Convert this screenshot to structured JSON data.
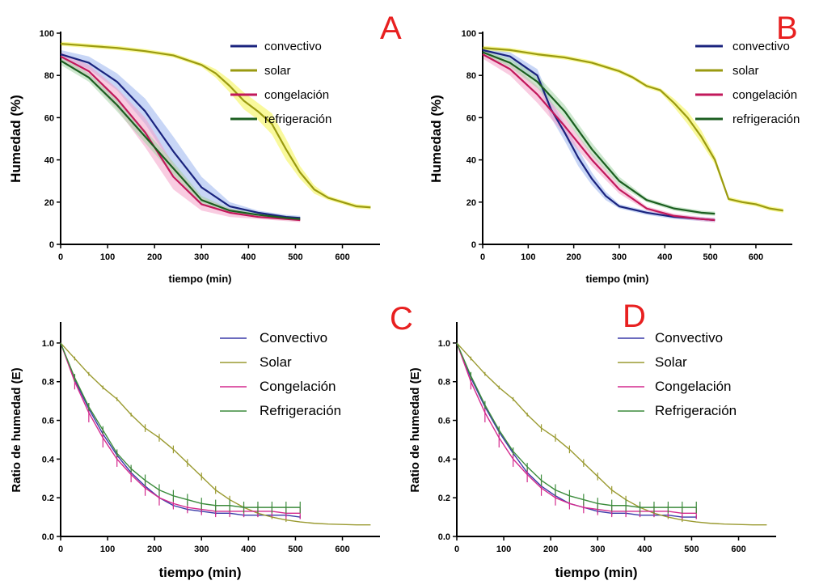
{
  "chart_data": [
    {
      "panel": "A",
      "type": "line",
      "xlabel": "tiempo (min)",
      "ylabel": "Humedad (%)",
      "xlim": [
        0,
        680
      ],
      "ylim": [
        0,
        100
      ],
      "xticks": [
        0,
        100,
        200,
        300,
        400,
        500,
        600
      ],
      "yticks": [
        0,
        20,
        40,
        60,
        80,
        100
      ],
      "legend_position": "top-right",
      "grid": false,
      "series": [
        {
          "name": "convectivo",
          "color": "#1a237e",
          "band_color": "#9bb4ee",
          "x": [
            0,
            60,
            120,
            180,
            240,
            300,
            360,
            420,
            480,
            510
          ],
          "y": [
            90,
            86,
            77,
            63,
            44,
            27,
            18,
            15,
            13,
            12.5
          ],
          "band": [
            2,
            3,
            4,
            6,
            7,
            5,
            2,
            1,
            1,
            1
          ]
        },
        {
          "name": "solar",
          "color": "#9a9a10",
          "band_color": "#f4f44a",
          "x": [
            0,
            60,
            120,
            180,
            240,
            300,
            330,
            360,
            390,
            420,
            450,
            480,
            510,
            540,
            570,
            600,
            630,
            660
          ],
          "y": [
            95,
            94,
            93,
            91.5,
            89.5,
            85,
            81,
            75,
            68,
            63,
            57,
            45,
            34,
            26,
            22,
            20,
            18,
            17.5
          ],
          "band": [
            1,
            1,
            1,
            1,
            1,
            1,
            2,
            3,
            4,
            4,
            5,
            5,
            3,
            2,
            1,
            1,
            1,
            1
          ]
        },
        {
          "name": "congelación",
          "color": "#c2185b",
          "band_color": "#f4a3c8",
          "x": [
            0,
            60,
            120,
            180,
            240,
            300,
            360,
            420,
            480,
            510
          ],
          "y": [
            89,
            82,
            69,
            53,
            32,
            19,
            15,
            13,
            12,
            11.5
          ],
          "band": [
            2,
            3,
            5,
            7,
            6,
            3,
            2,
            1,
            1,
            1
          ]
        },
        {
          "name": "refrigeración",
          "color": "#1b5e20",
          "band_color": "#a5d6a7",
          "x": [
            0,
            60,
            120,
            180,
            240,
            300,
            360,
            420,
            480,
            510
          ],
          "y": [
            87,
            79,
            66,
            51,
            36,
            21,
            16,
            14,
            12.5,
            12
          ],
          "band": [
            2,
            2,
            3,
            3,
            3,
            2,
            1,
            1,
            1,
            1
          ]
        }
      ]
    },
    {
      "panel": "B",
      "type": "line",
      "xlabel": "tiempo (min)",
      "ylabel": "Humedad (%)",
      "xlim": [
        0,
        680
      ],
      "ylim": [
        0,
        100
      ],
      "xticks": [
        0,
        100,
        200,
        300,
        400,
        500,
        600
      ],
      "yticks": [
        0,
        20,
        40,
        60,
        80,
        100
      ],
      "legend_position": "top-right",
      "grid": false,
      "series": [
        {
          "name": "convectivo",
          "color": "#1a237e",
          "band_color": "#9bb4ee",
          "x": [
            0,
            60,
            120,
            150,
            180,
            210,
            240,
            270,
            300,
            360,
            420,
            480,
            510
          ],
          "y": [
            92,
            89,
            80,
            64,
            53,
            41,
            31,
            23,
            18,
            15,
            13,
            12,
            11.5
          ],
          "band": [
            1,
            2,
            3,
            4,
            4,
            4,
            3,
            2,
            1,
            1,
            1,
            1,
            1
          ]
        },
        {
          "name": "solar",
          "color": "#9a9a10",
          "band_color": "#f4f44a",
          "x": [
            0,
            60,
            120,
            180,
            240,
            300,
            330,
            360,
            390,
            420,
            450,
            480,
            510,
            540,
            570,
            600,
            630,
            660
          ],
          "y": [
            93,
            92,
            90,
            88.5,
            86,
            82,
            79,
            75,
            73,
            67,
            60,
            51,
            40,
            21.5,
            20,
            19,
            17,
            16
          ],
          "band": [
            1,
            1,
            1,
            1,
            1,
            1,
            1,
            1,
            1,
            2,
            3,
            3,
            2,
            1,
            1,
            1,
            1,
            1
          ]
        },
        {
          "name": "congelación",
          "color": "#c2185b",
          "band_color": "#f4a3c8",
          "x": [
            0,
            60,
            120,
            180,
            240,
            300,
            360,
            420,
            480,
            510
          ],
          "y": [
            90,
            83,
            71,
            56,
            40,
            26,
            17,
            13.5,
            12,
            11.5
          ],
          "band": [
            2,
            3,
            4,
            4,
            3,
            2,
            1,
            1,
            1,
            1
          ]
        },
        {
          "name": "refrigeración",
          "color": "#1b5e20",
          "band_color": "#a5d6a7",
          "x": [
            0,
            60,
            120,
            180,
            240,
            300,
            360,
            420,
            480,
            510
          ],
          "y": [
            91,
            86,
            77,
            63,
            45,
            30,
            21,
            17,
            15,
            14.5
          ],
          "band": [
            1,
            2,
            3,
            3,
            3,
            2,
            1,
            1,
            1,
            1
          ]
        }
      ]
    },
    {
      "panel": "C",
      "type": "line",
      "xlabel": "tiempo (min)",
      "ylabel": "Ratio de humedad (E)",
      "xlim": [
        0,
        680
      ],
      "ylim": [
        0,
        1.1
      ],
      "xticks": [
        0,
        100,
        200,
        300,
        400,
        500,
        600
      ],
      "yticks": [
        0.0,
        0.2,
        0.4,
        0.6,
        0.8,
        1.0
      ],
      "legend_position": "top-right",
      "grid": false,
      "series": [
        {
          "name": "Convectivo",
          "color": "#3a3aa8",
          "x": [
            0,
            30,
            60,
            90,
            120,
            150,
            180,
            210,
            240,
            270,
            300,
            330,
            360,
            390,
            420,
            450,
            480,
            510
          ],
          "y": [
            1.0,
            0.81,
            0.66,
            0.53,
            0.42,
            0.33,
            0.26,
            0.2,
            0.16,
            0.14,
            0.13,
            0.12,
            0.12,
            0.11,
            0.11,
            0.11,
            0.11,
            0.1
          ],
          "err": [
            0,
            0.01,
            0.01,
            0.01,
            0.01,
            0.01,
            0.01,
            0.01,
            0.01,
            0.01,
            0.01,
            0.01,
            0.01,
            0.01,
            0.01,
            0.01,
            0.01,
            0.01
          ]
        },
        {
          "name": "Solar",
          "color": "#9a9a30",
          "x": [
            0,
            30,
            60,
            90,
            120,
            150,
            180,
            210,
            240,
            270,
            300,
            330,
            360,
            390,
            420,
            450,
            480,
            510,
            540,
            570,
            600,
            630,
            660
          ],
          "y": [
            1.0,
            0.92,
            0.84,
            0.77,
            0.71,
            0.63,
            0.56,
            0.51,
            0.45,
            0.38,
            0.31,
            0.24,
            0.19,
            0.15,
            0.12,
            0.1,
            0.085,
            0.075,
            0.068,
            0.064,
            0.062,
            0.06,
            0.06
          ],
          "err": [
            0,
            0.01,
            0.01,
            0.01,
            0.01,
            0.01,
            0.02,
            0.02,
            0.02,
            0.02,
            0.02,
            0.02,
            0.02,
            0.01,
            0.01,
            0.01,
            0.01,
            0,
            0,
            0,
            0,
            0,
            0
          ]
        },
        {
          "name": "Congelación",
          "color": "#d42a8e",
          "x": [
            0,
            30,
            60,
            90,
            120,
            150,
            180,
            210,
            240,
            270,
            300,
            330,
            360,
            390,
            420,
            450,
            480,
            510
          ],
          "y": [
            1.0,
            0.8,
            0.64,
            0.51,
            0.4,
            0.32,
            0.25,
            0.2,
            0.17,
            0.15,
            0.14,
            0.13,
            0.13,
            0.13,
            0.13,
            0.13,
            0.12,
            0.12
          ],
          "err": [
            0,
            0.04,
            0.05,
            0.05,
            0.04,
            0.04,
            0.04,
            0.04,
            0.03,
            0.03,
            0.03,
            0.03,
            0.03,
            0.03,
            0.03,
            0.03,
            0.03,
            0.03
          ]
        },
        {
          "name": "Refrigeración",
          "color": "#3c8c3c",
          "x": [
            0,
            30,
            60,
            90,
            120,
            150,
            180,
            210,
            240,
            270,
            300,
            330,
            360,
            390,
            420,
            450,
            480,
            510
          ],
          "y": [
            1.0,
            0.82,
            0.67,
            0.55,
            0.43,
            0.35,
            0.29,
            0.24,
            0.21,
            0.19,
            0.17,
            0.16,
            0.16,
            0.15,
            0.15,
            0.15,
            0.15,
            0.15
          ],
          "err": [
            0,
            0.02,
            0.02,
            0.02,
            0.02,
            0.02,
            0.03,
            0.03,
            0.03,
            0.03,
            0.03,
            0.03,
            0.03,
            0.03,
            0.03,
            0.03,
            0.03,
            0.03
          ]
        }
      ]
    },
    {
      "panel": "D",
      "type": "line",
      "xlabel": "tiempo (min)",
      "ylabel": "Ratio de humedad (E)",
      "xlim": [
        0,
        680
      ],
      "ylim": [
        0,
        1.1
      ],
      "xticks": [
        0,
        100,
        200,
        300,
        400,
        500,
        600
      ],
      "yticks": [
        0.0,
        0.2,
        0.4,
        0.6,
        0.8,
        1.0
      ],
      "legend_position": "top-right",
      "grid": false,
      "series": [
        {
          "name": "Convectivo",
          "color": "#3a3aa8",
          "x": [
            0,
            30,
            60,
            90,
            120,
            150,
            180,
            210,
            240,
            270,
            300,
            330,
            360,
            390,
            420,
            450,
            480,
            510
          ],
          "y": [
            1.0,
            0.82,
            0.67,
            0.54,
            0.43,
            0.33,
            0.26,
            0.21,
            0.17,
            0.15,
            0.13,
            0.12,
            0.12,
            0.11,
            0.11,
            0.11,
            0.1,
            0.1
          ],
          "err": [
            0,
            0.01,
            0.01,
            0.01,
            0.01,
            0.01,
            0.01,
            0.01,
            0.01,
            0.01,
            0.01,
            0.01,
            0.01,
            0.01,
            0.01,
            0.01,
            0.01,
            0.01
          ]
        },
        {
          "name": "Solar",
          "color": "#9a9a30",
          "x": [
            0,
            30,
            60,
            90,
            120,
            150,
            180,
            210,
            240,
            270,
            300,
            330,
            360,
            390,
            420,
            450,
            480,
            510,
            540,
            570,
            600,
            630,
            660
          ],
          "y": [
            1.0,
            0.92,
            0.84,
            0.77,
            0.71,
            0.63,
            0.56,
            0.51,
            0.45,
            0.38,
            0.31,
            0.24,
            0.19,
            0.15,
            0.12,
            0.1,
            0.085,
            0.075,
            0.068,
            0.064,
            0.062,
            0.06,
            0.06
          ],
          "err": [
            0,
            0.01,
            0.01,
            0.01,
            0.01,
            0.01,
            0.02,
            0.02,
            0.02,
            0.02,
            0.02,
            0.02,
            0.02,
            0.01,
            0.01,
            0.01,
            0.01,
            0,
            0,
            0,
            0,
            0,
            0
          ]
        },
        {
          "name": "Congelación",
          "color": "#d42a8e",
          "x": [
            0,
            30,
            60,
            90,
            120,
            150,
            180,
            210,
            240,
            270,
            300,
            330,
            360,
            390,
            420,
            450,
            480,
            510
          ],
          "y": [
            1.0,
            0.8,
            0.64,
            0.51,
            0.4,
            0.32,
            0.25,
            0.2,
            0.17,
            0.15,
            0.14,
            0.13,
            0.13,
            0.13,
            0.13,
            0.13,
            0.12,
            0.12
          ],
          "err": [
            0,
            0.04,
            0.05,
            0.05,
            0.04,
            0.04,
            0.04,
            0.04,
            0.03,
            0.03,
            0.03,
            0.03,
            0.03,
            0.03,
            0.03,
            0.03,
            0.03,
            0.03
          ]
        },
        {
          "name": "Refrigeración",
          "color": "#3c8c3c",
          "x": [
            0,
            30,
            60,
            90,
            120,
            150,
            180,
            210,
            240,
            270,
            300,
            330,
            360,
            390,
            420,
            450,
            480,
            510
          ],
          "y": [
            1.0,
            0.83,
            0.68,
            0.55,
            0.44,
            0.36,
            0.29,
            0.24,
            0.21,
            0.19,
            0.17,
            0.16,
            0.16,
            0.15,
            0.15,
            0.15,
            0.15,
            0.15
          ],
          "err": [
            0,
            0.02,
            0.02,
            0.02,
            0.02,
            0.02,
            0.03,
            0.03,
            0.03,
            0.03,
            0.03,
            0.03,
            0.03,
            0.03,
            0.03,
            0.03,
            0.03,
            0.03
          ]
        }
      ]
    }
  ]
}
